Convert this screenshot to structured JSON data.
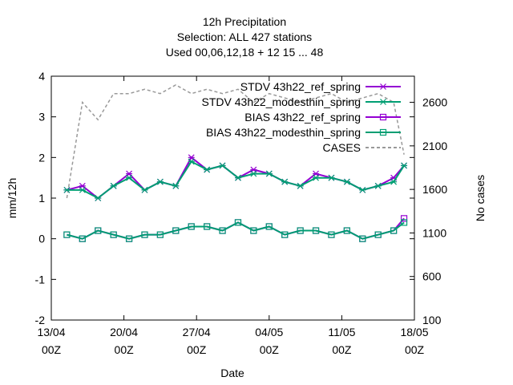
{
  "chart_data": {
    "type": "line",
    "title_lines": [
      "12h Precipitation",
      "Selection: ALL    427 stations",
      "Used  00,06,12,18  + 12 15 ... 48"
    ],
    "xlabel": "Date",
    "ylabel": "mm/12h",
    "y2label": "No cases",
    "ylim": [
      -2,
      4
    ],
    "y2lim": [
      100,
      2900
    ],
    "xlim": [
      "2025-04-13 00Z",
      "2025-05-18 00Z"
    ],
    "x_ticks": [
      {
        "line1": "13/04",
        "line2": "00Z"
      },
      {
        "line1": "20/04",
        "line2": "00Z"
      },
      {
        "line1": "27/04",
        "line2": "00Z"
      },
      {
        "line1": "04/05",
        "line2": "00Z"
      },
      {
        "line1": "11/05",
        "line2": "00Z"
      },
      {
        "line1": "18/05",
        "line2": "00Z"
      }
    ],
    "y_ticks": [
      "-2",
      "-1",
      "0",
      "1",
      "2",
      "3",
      "4"
    ],
    "y2_ticks": [
      "100",
      "600",
      "1100",
      "1600",
      "2100",
      "2600"
    ],
    "x_dates": [
      "14/04 12Z",
      "16/04 00Z",
      "17/04 12Z",
      "19/04 00Z",
      "20/04 12Z",
      "22/04 00Z",
      "23/04 12Z",
      "25/04 00Z",
      "26/04 12Z",
      "28/04 00Z",
      "29/04 12Z",
      "01/05 00Z",
      "02/05 12Z",
      "04/05 00Z",
      "05/05 12Z",
      "07/05 00Z",
      "08/05 12Z",
      "10/05 00Z",
      "11/05 12Z",
      "13/05 00Z",
      "14/05 12Z",
      "16/05 00Z",
      "17/05 00Z"
    ],
    "series": [
      {
        "name": "STDV 43h22_ref_spring",
        "color": "#9400d3",
        "marker": "x-star",
        "values": [
          1.2,
          1.3,
          1.0,
          1.3,
          1.6,
          1.2,
          1.4,
          1.3,
          2.0,
          1.7,
          1.8,
          1.5,
          1.7,
          1.6,
          1.4,
          1.3,
          1.6,
          1.5,
          1.4,
          1.2,
          1.3,
          1.5,
          1.8
        ]
      },
      {
        "name": "STDV 43h22_modesthin_spring",
        "color": "#009e73",
        "marker": "x-star",
        "values": [
          1.2,
          1.2,
          1.0,
          1.3,
          1.5,
          1.2,
          1.4,
          1.3,
          1.9,
          1.7,
          1.8,
          1.5,
          1.6,
          1.6,
          1.4,
          1.3,
          1.5,
          1.5,
          1.4,
          1.2,
          1.3,
          1.4,
          1.8
        ]
      },
      {
        "name": "BIAS 43h22_ref_spring",
        "color": "#9400d3",
        "marker": "square",
        "values": [
          0.1,
          0.0,
          0.2,
          0.1,
          0.0,
          0.1,
          0.1,
          0.2,
          0.3,
          0.3,
          0.2,
          0.4,
          0.2,
          0.3,
          0.1,
          0.2,
          0.2,
          0.1,
          0.2,
          0.0,
          0.1,
          0.2,
          0.5
        ]
      },
      {
        "name": "BIAS 43h22_modesthin_spring",
        "color": "#009e73",
        "marker": "square",
        "values": [
          0.1,
          0.0,
          0.2,
          0.1,
          0.0,
          0.1,
          0.1,
          0.2,
          0.3,
          0.3,
          0.2,
          0.4,
          0.2,
          0.3,
          0.1,
          0.2,
          0.2,
          0.1,
          0.2,
          0.0,
          0.1,
          0.2,
          0.4
        ]
      },
      {
        "name": "CASES",
        "color": "#999999",
        "axis": "y2",
        "style": "dashed",
        "values": [
          1500,
          2600,
          2400,
          2700,
          2700,
          2750,
          2700,
          2800,
          2700,
          2750,
          2700,
          2750,
          2600,
          2700,
          2650,
          2600,
          2650,
          2700,
          2600,
          2650,
          2700,
          2600,
          2000
        ]
      }
    ],
    "legend_placement": "top-right",
    "grid": false
  }
}
